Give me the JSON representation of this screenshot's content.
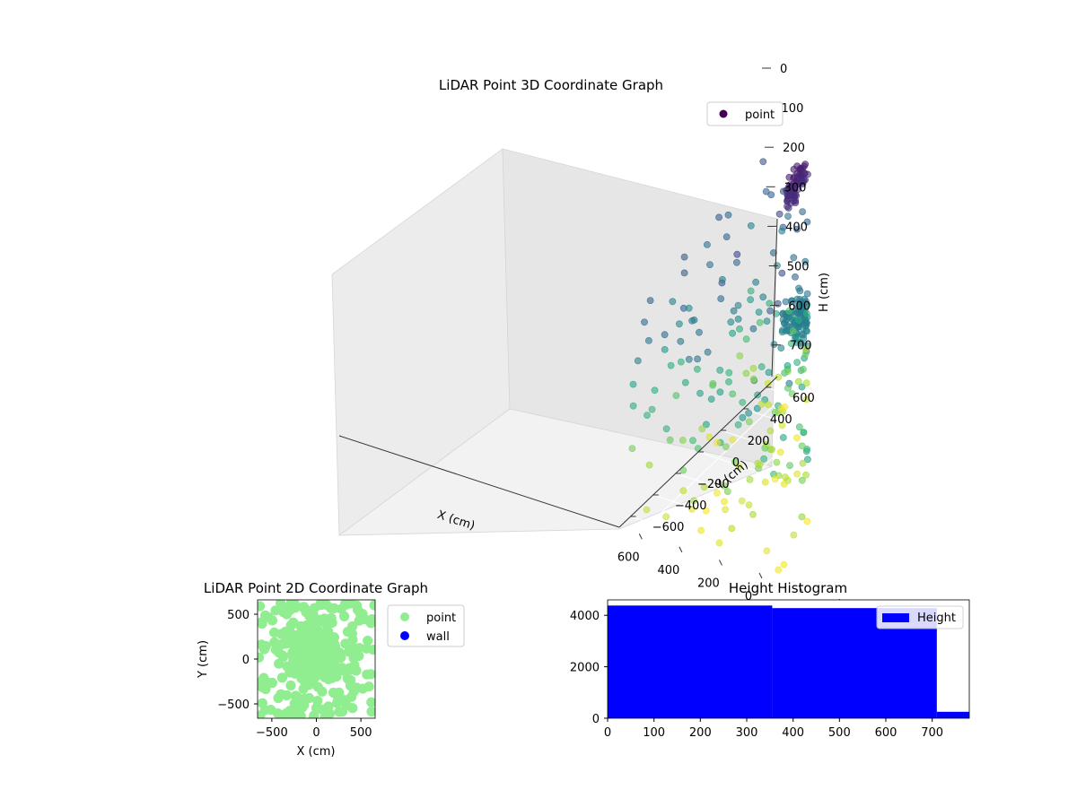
{
  "chart_data": [
    {
      "type": "scatter",
      "projection": "3d",
      "title": "LiDAR Point 3D Coordinate Graph",
      "xlabel": "X (cm)",
      "ylabel": "Y (cm)",
      "zlabel": "H (cm)",
      "xticks": [
        "−600",
        "−400",
        "−200",
        "0",
        "200",
        "400",
        "600"
      ],
      "yticks": [
        "−600",
        "−400",
        "−200",
        "0",
        "200",
        "400",
        "600"
      ],
      "zticks": [
        "0",
        "100",
        "200",
        "300",
        "400",
        "500",
        "600",
        "700"
      ],
      "xlim": [
        -700,
        700
      ],
      "ylim": [
        -700,
        700
      ],
      "zlim": [
        0,
        780
      ],
      "z_inverted": true,
      "colormap": "viridis",
      "grid": true,
      "legend": {
        "placement": "upper-right",
        "entries": [
          "point"
        ]
      },
      "series": [
        {
          "name": "point",
          "color": "#440154",
          "structures": [
            {
              "kind": "ring",
              "center": [
                -50,
                250,
                60
              ],
              "radius": 330,
              "description": "upper ring"
            },
            {
              "kind": "disc",
              "center": [
                0,
                0,
                330
              ],
              "radius": 220,
              "description": "middle disc"
            },
            {
              "kind": "column",
              "center": [
                0,
                0
              ],
              "z_range": [
                330,
                700
              ],
              "description": "central column"
            },
            {
              "kind": "scatter-cloud",
              "x_range": [
                -700,
                700
              ],
              "y_range": [
                -700,
                700
              ],
              "z_range": [
                150,
                780
              ],
              "description": "scattered points"
            }
          ]
        }
      ]
    },
    {
      "type": "scatter",
      "title": "LiDAR Point 2D Coordinate Graph",
      "xlabel": "X (cm)",
      "ylabel": "Y (cm)",
      "xticks": [
        -500,
        0,
        500
      ],
      "yticks": [
        -500,
        0,
        500
      ],
      "xlim": [
        -660,
        660
      ],
      "ylim": [
        -660,
        660
      ],
      "legend": {
        "placement": "outside-right",
        "entries": [
          "point",
          "wall"
        ]
      },
      "series": [
        {
          "name": "point",
          "color": "#90ee90",
          "description": "dense cluster filling central area"
        },
        {
          "name": "wall",
          "color": "#0000ff",
          "description": "no points visible"
        }
      ]
    },
    {
      "type": "bar",
      "subtype": "histogram",
      "title": "Height Histogram",
      "xlabel": "",
      "ylabel": "",
      "xticks": [
        0,
        100,
        200,
        300,
        400,
        500,
        600,
        700
      ],
      "yticks": [
        0,
        2000,
        4000
      ],
      "xlim": [
        0,
        780
      ],
      "ylim": [
        0,
        4600
      ],
      "color": "#0000ff",
      "legend": {
        "placement": "upper-right",
        "entries": [
          "Height"
        ]
      },
      "series": [
        {
          "name": "Height",
          "bins": [
            {
              "x0": 0,
              "x1": 355,
              "value": 4380
            },
            {
              "x0": 355,
              "x1": 710,
              "value": 4280
            },
            {
              "x0": 710,
              "x1": 780,
              "value": 250
            }
          ]
        }
      ]
    }
  ]
}
